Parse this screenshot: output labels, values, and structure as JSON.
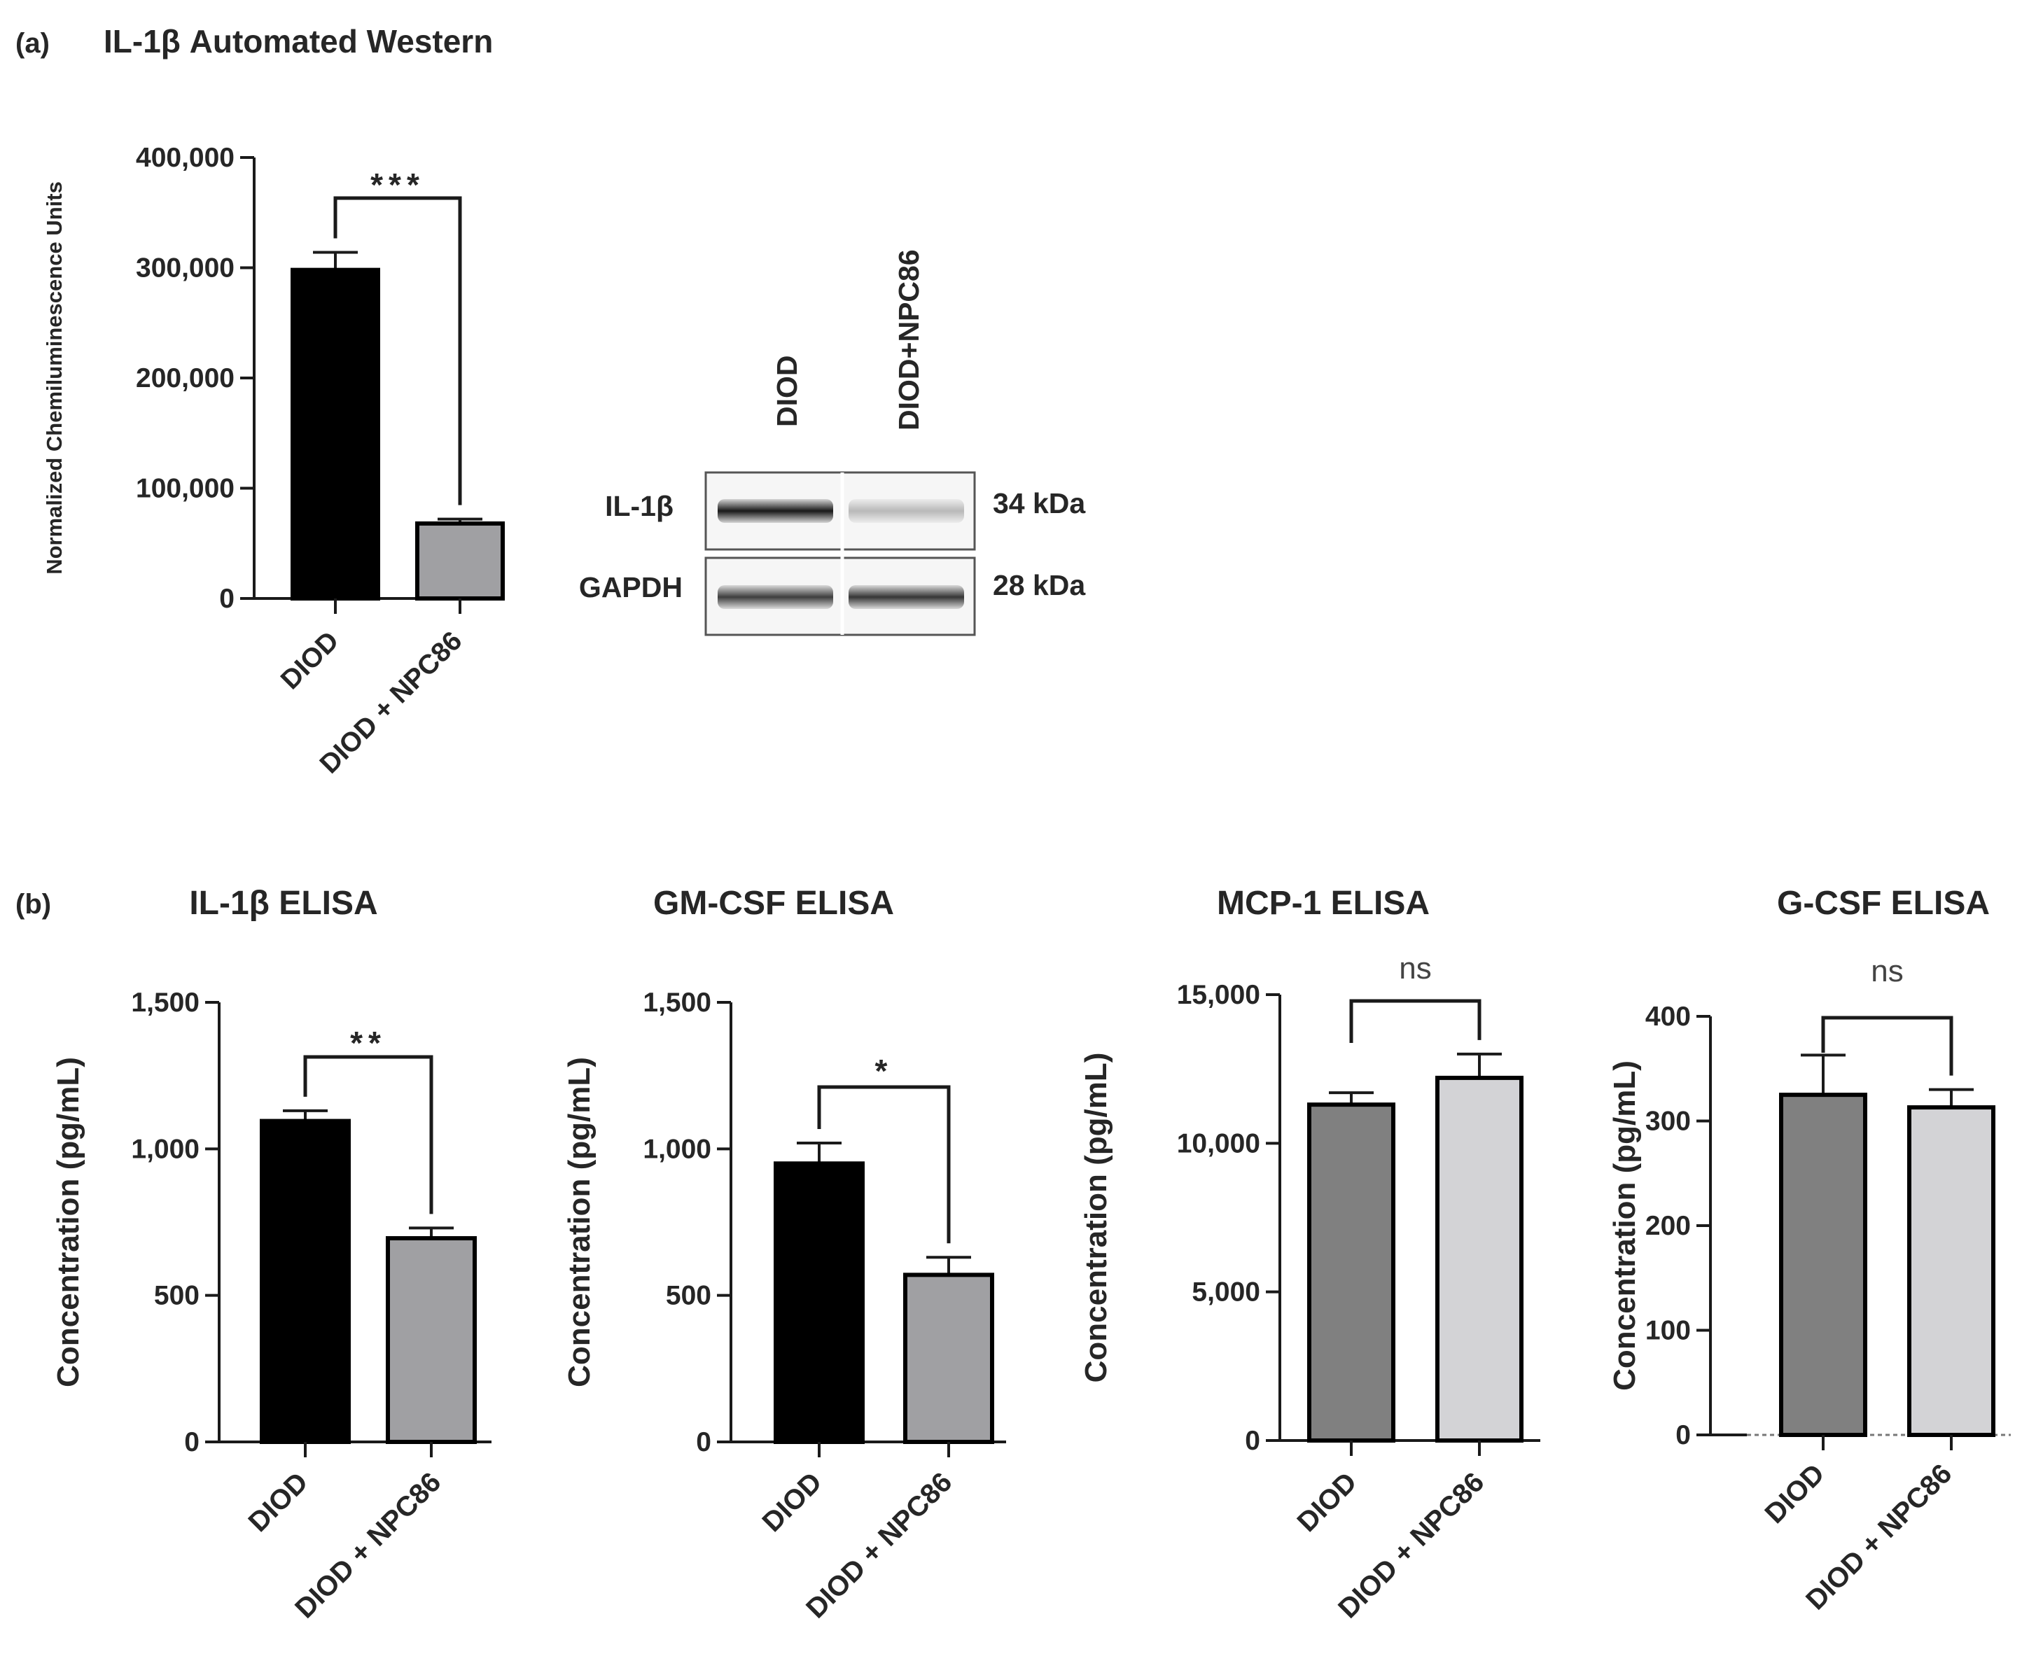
{
  "panel_a": {
    "label": "(a)",
    "title": "IL-1β Automated Western"
  },
  "panel_b": {
    "label": "(b)"
  },
  "blot": {
    "lane_labels": [
      "DIOD",
      "DIOD+NPC86"
    ],
    "rows": [
      {
        "name": "IL-1β",
        "size": "34 kDa",
        "intensity": [
          0.9,
          0.25
        ]
      },
      {
        "name": "GAPDH",
        "size": "28 kDa",
        "intensity": [
          0.75,
          0.78
        ]
      }
    ]
  },
  "colors": {
    "black_bar": "#000000",
    "grey_bar": "#a0a0a3",
    "dark_grey_bar": "#808080",
    "light_grey_bar": "#d3d3d6"
  },
  "chart_data": [
    {
      "id": "western",
      "type": "bar",
      "title": "",
      "ylabel": "Normalized Chemiluminescence Units",
      "xlabel": "",
      "categories": [
        "DIOD",
        "DIOD + NPC86"
      ],
      "values": [
        298000,
        68000
      ],
      "errors": [
        16000,
        4000
      ],
      "colors": [
        "#000000",
        "#a0a0a3"
      ],
      "ylim": [
        0,
        400000
      ],
      "yticks": [
        0,
        100000,
        200000,
        300000,
        400000
      ],
      "ytick_labels": [
        "0",
        "100,000",
        "200,000",
        "300,000",
        "400,000"
      ],
      "significance": "***",
      "dashed_baseline": false
    },
    {
      "id": "il1b",
      "type": "bar",
      "title": "IL-1β ELISA",
      "ylabel": "Concentration (pg/mL)",
      "xlabel": "",
      "categories": [
        "DIOD",
        "DIOD + NPC86"
      ],
      "values": [
        1095,
        695
      ],
      "errors": [
        35,
        35
      ],
      "colors": [
        "#000000",
        "#a0a0a3"
      ],
      "ylim": [
        0,
        1500
      ],
      "yticks": [
        0,
        500,
        1000,
        1500
      ],
      "ytick_labels": [
        "0",
        "500",
        "1,000",
        "1,500"
      ],
      "significance": "**",
      "dashed_baseline": false
    },
    {
      "id": "gmcsf",
      "type": "bar",
      "title": "GM-CSF ELISA",
      "ylabel": "Concentration (pg/mL)",
      "xlabel": "",
      "categories": [
        "DIOD",
        "DIOD + NPC86"
      ],
      "values": [
        950,
        570
      ],
      "errors": [
        70,
        60
      ],
      "colors": [
        "#000000",
        "#a0a0a3"
      ],
      "ylim": [
        0,
        1500
      ],
      "yticks": [
        0,
        500,
        1000,
        1500
      ],
      "ytick_labels": [
        "0",
        "500",
        "1,000",
        "1,500"
      ],
      "significance": "*",
      "dashed_baseline": false
    },
    {
      "id": "mcp1",
      "type": "bar",
      "title": "MCP-1 ELISA",
      "ylabel": "Concentration (pg/mL)",
      "xlabel": "",
      "categories": [
        "DIOD",
        "DIOD + NPC86"
      ],
      "values": [
        11300,
        12200
      ],
      "errors": [
        400,
        800
      ],
      "colors": [
        "#808080",
        "#d3d3d6"
      ],
      "ylim": [
        0,
        15000
      ],
      "yticks": [
        0,
        5000,
        10000,
        15000
      ],
      "ytick_labels": [
        "0",
        "5,000",
        "10,000",
        "15,000"
      ],
      "significance": "ns",
      "dashed_baseline": false
    },
    {
      "id": "gcsf",
      "type": "bar",
      "title": "G-CSF ELISA",
      "ylabel": "Concentration (pg/mL)",
      "xlabel": "",
      "categories": [
        "DIOD",
        "DIOD + NPC86"
      ],
      "values": [
        325,
        313
      ],
      "errors": [
        38,
        17
      ],
      "colors": [
        "#808080",
        "#d3d3d6"
      ],
      "ylim": [
        0,
        400
      ],
      "yticks": [
        0,
        100,
        200,
        300,
        400
      ],
      "ytick_labels": [
        "0",
        "100",
        "200",
        "300",
        "400"
      ],
      "significance": "ns",
      "dashed_baseline": true
    }
  ]
}
